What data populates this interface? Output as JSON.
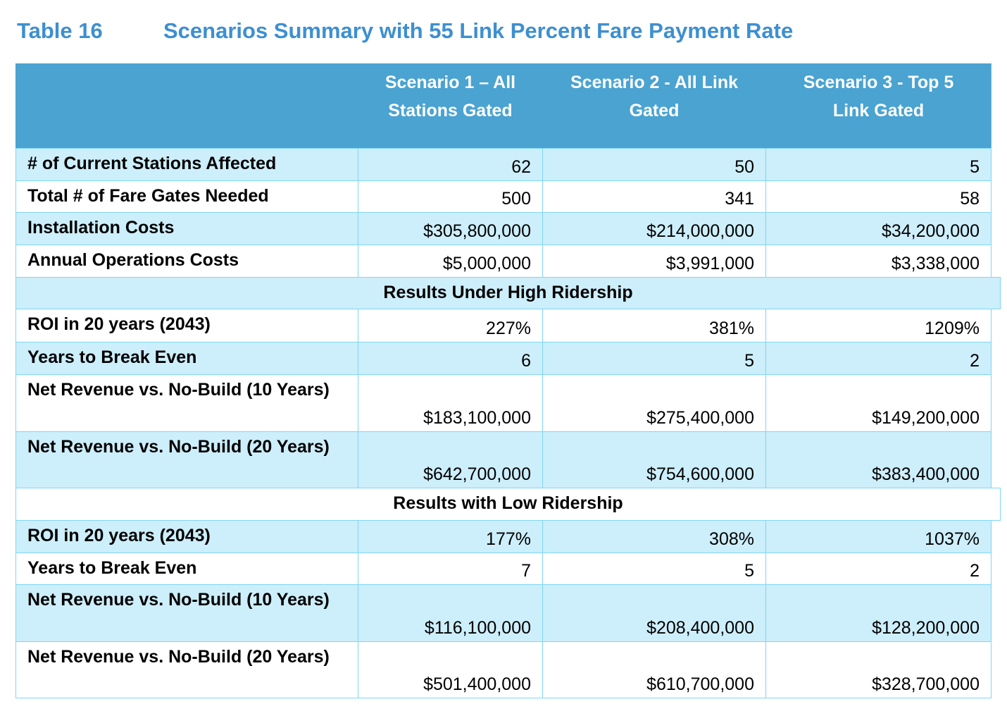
{
  "table_number": "Table 16",
  "table_title": "Scenarios Summary with 55 Link Percent Fare Payment Rate",
  "columns": [
    "",
    "Scenario 1 – All Stations Gated",
    "Scenario 2 - All Link Gated",
    "Scenario 3 - Top 5 Link Gated"
  ],
  "rows": [
    {
      "type": "data",
      "label": "# of Current Stations Affected",
      "values": [
        "62",
        "50",
        "5"
      ]
    },
    {
      "type": "data",
      "label": "Total # of Fare Gates Needed",
      "values": [
        "500",
        "341",
        "58"
      ]
    },
    {
      "type": "data",
      "label": "Installation Costs",
      "values": [
        "$305,800,000",
        "$214,000,000",
        "$34,200,000"
      ]
    },
    {
      "type": "data",
      "label": "Annual Operations Costs",
      "values": [
        "$5,000,000",
        "$3,991,000",
        "$3,338,000"
      ]
    },
    {
      "type": "section",
      "label": "Results Under High Ridership"
    },
    {
      "type": "data",
      "label": "ROI in 20 years (2043)",
      "values": [
        "227%",
        "381%",
        "1209%"
      ]
    },
    {
      "type": "data",
      "label": "Years to Break Even",
      "values": [
        "6",
        "5",
        "2"
      ]
    },
    {
      "type": "data",
      "label": "Net Revenue vs. No-Build (10 Years)",
      "values": [
        "$183,100,000",
        "$275,400,000",
        "$149,200,000"
      ]
    },
    {
      "type": "data",
      "label": "Net Revenue vs. No-Build (20 Years)",
      "values": [
        "$642,700,000",
        "$754,600,000",
        "$383,400,000"
      ]
    },
    {
      "type": "section",
      "label": "Results with Low Ridership"
    },
    {
      "type": "data",
      "label": "ROI in 20 years (2043)",
      "values": [
        "177%",
        "308%",
        "1037%"
      ]
    },
    {
      "type": "data",
      "label": "Years to Break Even",
      "values": [
        "7",
        "5",
        "2"
      ]
    },
    {
      "type": "data",
      "label": "Net Revenue vs. No-Build (10 Years)",
      "values": [
        "$116,100,000",
        "$208,400,000",
        "$128,200,000"
      ]
    },
    {
      "type": "data",
      "label": "Net Revenue vs. No-Build (20 Years)",
      "values": [
        "$501,400,000",
        "$610,700,000",
        "$328,700,000"
      ]
    }
  ],
  "colors": {
    "title": "#3d8fd1",
    "header": "#4aa3d1",
    "light_row": "#cdeefb",
    "border": "#7fd6f5"
  }
}
